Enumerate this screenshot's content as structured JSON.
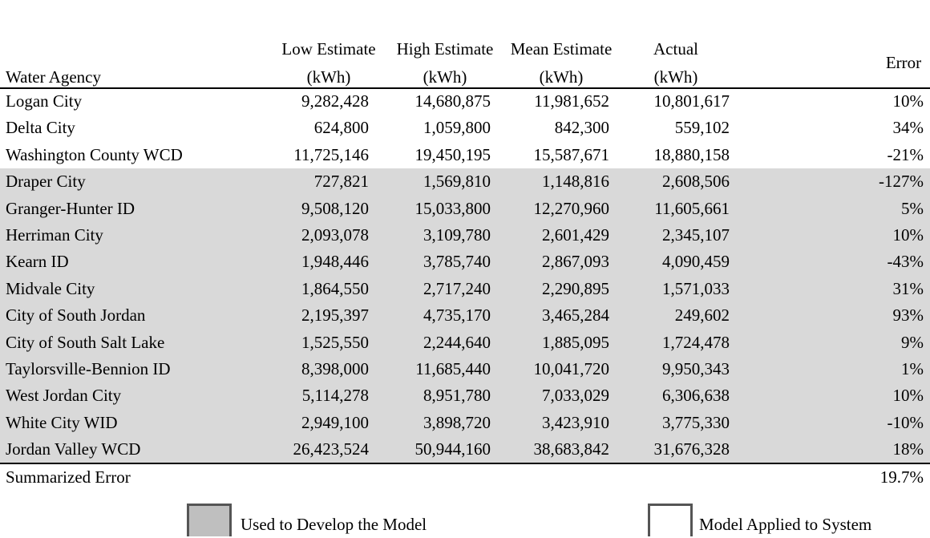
{
  "table": {
    "header": {
      "agency": "Water Agency",
      "columns": [
        {
          "line1": "Low Estimate",
          "line2": "(kWh)"
        },
        {
          "line1": "High Estimate",
          "line2": "(kWh)"
        },
        {
          "line1": "Mean Estimate",
          "line2": "(kWh)"
        },
        {
          "line1": "Actual",
          "line2": "(kWh)"
        }
      ],
      "error": "Error"
    },
    "sections": [
      {
        "rows": [
          [
            "Logan City",
            "9,282,428",
            "14,680,875",
            "11,981,652",
            "10,801,617",
            "10%"
          ],
          [
            "Delta City",
            "624,800",
            "1,059,800",
            "842,300",
            "559,102",
            "34%"
          ],
          [
            "Washington County WCD",
            "11,725,146",
            "19,450,195",
            "15,587,671",
            "18,880,158",
            "-21%"
          ]
        ]
      },
      {
        "rows": [
          [
            "Draper City",
            "727,821",
            "1,569,810",
            "1,148,816",
            "2,608,506",
            "-127%"
          ],
          [
            "Granger-Hunter ID",
            "9,508,120",
            "15,033,800",
            "12,270,960",
            "11,605,661",
            "5%"
          ],
          [
            "Herriman City",
            "2,093,078",
            "3,109,780",
            "2,601,429",
            "2,345,107",
            "10%"
          ],
          [
            "Kearn ID",
            "1,948,446",
            "3,785,740",
            "2,867,093",
            "4,090,459",
            "-43%"
          ],
          [
            "Midvale City",
            "1,864,550",
            "2,717,240",
            "2,290,895",
            "1,571,033",
            "31%"
          ],
          [
            "City of South Jordan",
            "2,195,397",
            "4,735,170",
            "3,465,284",
            "249,602",
            "93%"
          ],
          [
            "City of South Salt Lake",
            "1,525,550",
            "2,244,640",
            "1,885,095",
            "1,724,478",
            "9%"
          ],
          [
            "Taylorsville-Bennion ID",
            "8,398,000",
            "11,685,440",
            "10,041,720",
            "9,950,343",
            "1%"
          ],
          [
            "West Jordan City",
            "5,114,278",
            "8,951,780",
            "7,033,029",
            "6,306,638",
            "10%"
          ],
          [
            "White City WID",
            "2,949,100",
            "3,898,720",
            "3,423,910",
            "3,775,330",
            "-10%"
          ],
          [
            "Jordan Valley WCD",
            "26,423,524",
            "50,944,160",
            "38,683,842",
            "31,676,328",
            "18%"
          ]
        ]
      }
    ],
    "summary": {
      "label": "Summarized Error",
      "value": "19.7%"
    }
  },
  "legend": [
    {
      "label": "Used to Develop the Model"
    },
    {
      "label": "Model Applied to System"
    }
  ]
}
